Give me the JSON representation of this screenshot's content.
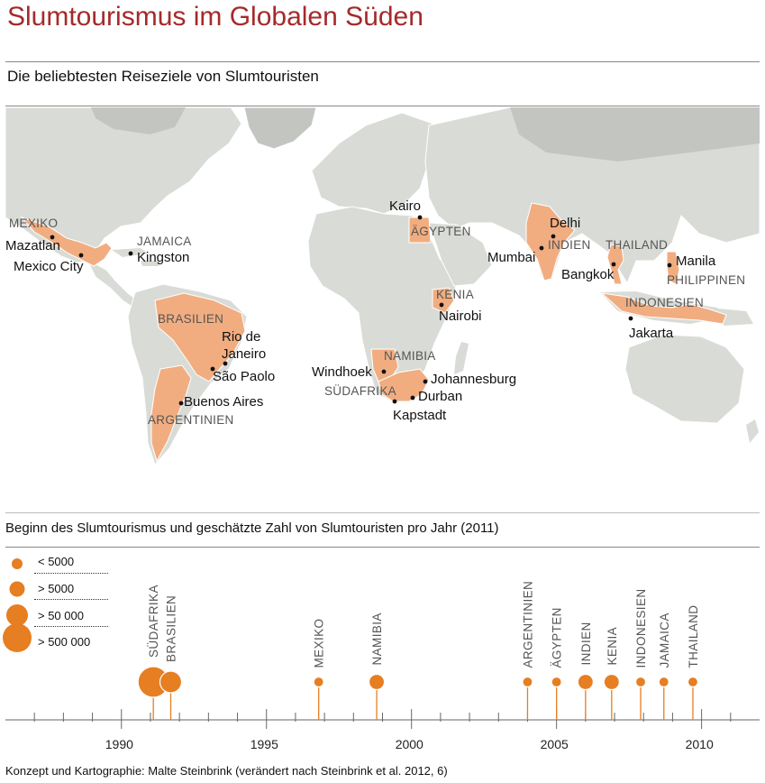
{
  "header": {
    "title": "Slumtourismus im Globalen Süden",
    "subtitle": "Die beliebtesten Reiseziele von Slumtouristen"
  },
  "map": {
    "colors": {
      "ocean": "#ffffff",
      "land": "#d9dbd6",
      "land_dark": "#c3c6c0",
      "highlight": "#f1ad80",
      "border": "#ffffff"
    },
    "countries": {
      "mexiko": "MEXIKO",
      "jamaica": "JAMAICA",
      "brasilien": "BRASILIEN",
      "argentinien": "ARGENTINIEN",
      "aegypten": "ÄGYPTEN",
      "kenia": "KENIA",
      "namibia": "NAMIBIA",
      "suedafrika": "SÜDAFRIKA",
      "indien": "INDIEN",
      "thailand": "THAILAND",
      "philippinen": "PHILIPPINEN",
      "indonesien": "INDONESIEN"
    },
    "cities": {
      "mazatlan": "Mazatlan",
      "mexico_city": "Mexico City",
      "kingston": "Kingston",
      "rio_line1": "Rio de",
      "rio_line2": "Janeiro",
      "sao_paolo": "São Paolo",
      "buenos_aires": "Buenos Aires",
      "kairo": "Kairo",
      "nairobi": "Nairobi",
      "windhoek": "Windhoek",
      "johannesburg": "Johannesburg",
      "durban": "Durban",
      "kapstadt": "Kapstadt",
      "delhi": "Delhi",
      "mumbai": "Mumbai",
      "bangkok": "Bangkok",
      "manila": "Manila",
      "jakarta": "Jakarta"
    }
  },
  "timeline": {
    "heading": "Beginn des Slumtourismus und geschätzte Zahl von Slumtouristen pro Jahr (2011)",
    "accent": "#e67e22",
    "legend": [
      {
        "label": "< 5000"
      },
      {
        "label": "> 5000"
      },
      {
        "label": "> 50 000"
      },
      {
        "label": "> 500 000"
      }
    ],
    "axis": {
      "x_min": 1986,
      "x_max": 2012,
      "ticks": [
        "1990",
        "1995",
        "2000",
        "2005",
        "2010"
      ]
    },
    "entries": [
      {
        "country": "SÜDAFRIKA",
        "year": 1991.1,
        "size_class": "> 500 000"
      },
      {
        "country": "BRASILIEN",
        "year": 1991.7,
        "size_class": "> 50 000"
      },
      {
        "country": "MEXIKO",
        "year": 1996.8,
        "size_class": "< 5000"
      },
      {
        "country": "NAMIBIA",
        "year": 1998.8,
        "size_class": "> 5000"
      },
      {
        "country": "ARGENTINIEN",
        "year": 2004.0,
        "size_class": "< 5000"
      },
      {
        "country": "ÄGYPTEN",
        "year": 2005.0,
        "size_class": "< 5000"
      },
      {
        "country": "INDIEN",
        "year": 2006.0,
        "size_class": "> 5000"
      },
      {
        "country": "KENIA",
        "year": 2006.9,
        "size_class": "> 5000"
      },
      {
        "country": "INDONESIEN",
        "year": 2007.9,
        "size_class": "< 5000"
      },
      {
        "country": "JAMAICA",
        "year": 2008.7,
        "size_class": "< 5000"
      },
      {
        "country": "THAILAND",
        "year": 2009.7,
        "size_class": "< 5000"
      }
    ]
  },
  "footer": "Konzept und Kartographie: Malte Steinbrink (verändert nach Steinbrink et al. 2012, 6)"
}
